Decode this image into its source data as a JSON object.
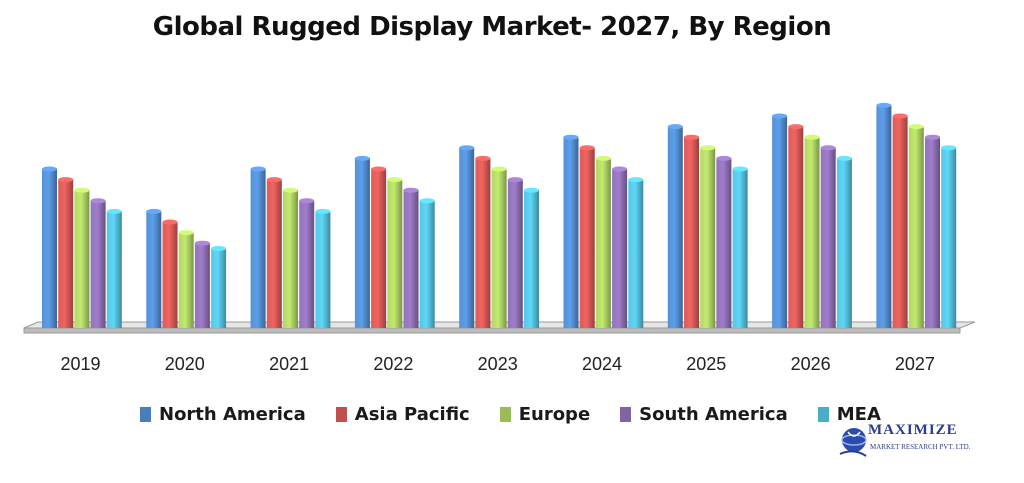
{
  "chart_data": {
    "type": "bar",
    "title": "Global Rugged Display Market- 2027, By Region",
    "xlabel": "",
    "ylabel": "",
    "ylim": [
      0,
      100
    ],
    "grid": false,
    "legend_position": "bottom",
    "categories": [
      "2019",
      "2020",
      "2021",
      "2022",
      "2023",
      "2024",
      "2025",
      "2026",
      "2027"
    ],
    "series": [
      {
        "name": "North America",
        "color": "#4a7ebb",
        "values": [
          60,
          44,
          60,
          64,
          68,
          72,
          76,
          80,
          84
        ]
      },
      {
        "name": "Asia Pacific",
        "color": "#c0504d",
        "values": [
          56,
          40,
          56,
          60,
          64,
          68,
          72,
          76,
          80
        ]
      },
      {
        "name": "Europe",
        "color": "#9bbb59",
        "values": [
          52,
          36,
          52,
          56,
          60,
          64,
          68,
          72,
          76
        ]
      },
      {
        "name": "South America",
        "color": "#8064a2",
        "values": [
          48,
          32,
          48,
          52,
          56,
          60,
          64,
          68,
          72
        ]
      },
      {
        "name": "MEA",
        "color": "#4bacc6",
        "values": [
          44,
          30,
          44,
          48,
          52,
          56,
          60,
          64,
          68
        ]
      }
    ]
  },
  "logo": {
    "name": "MAXIMIZE",
    "subtitle": "MARKET RESEARCH PVT. LTD."
  }
}
